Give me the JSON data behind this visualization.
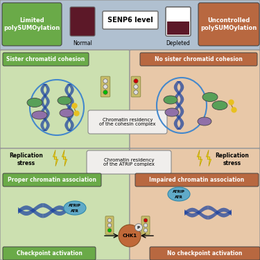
{
  "fig_w": 3.75,
  "fig_h": 3.75,
  "dpi": 100,
  "bg_top": "#b0c0d0",
  "bg_left_mid": "#cce0b0",
  "bg_right_mid": "#e8c8a8",
  "green_box": "#6aaa48",
  "brown_box": "#b86840",
  "dark_red": "#5c1828",
  "white": "#ffffff",
  "off_white": "#f0eeec",
  "blue_dna": "#1840a0",
  "green_oval": "#58a058",
  "purple_oval": "#9070a8",
  "yellow_dot": "#e8c020",
  "lightning_yellow": "#f0e030",
  "chk1_brown": "#c06838",
  "traffic_box": "#c8bc68",
  "atrip_blue": "#60aac8",
  "label_limited": "Limited\npolySUMOylation",
  "label_uncontrolled": "Uncontrolled\npolySUMOylation",
  "label_senp6": "SENP6 level",
  "label_normal": "Normal",
  "label_depleted": "Depleted",
  "label_sister": "Sister chromatid cohesion",
  "label_no_sister": "No sister chromatid cohesion",
  "label_cohesin": "Chromatin residency\nof the cohesin complex",
  "label_repl": "Replication\nstress",
  "label_atrip_complex": "Chromatin residency\nof the ATRIP complex",
  "label_proper": "Proper chromatin association",
  "label_impaired": "Impaired chromatin association",
  "label_checkpoint": "Checkpoint activation",
  "label_no_checkpoint": "No checkpoint activation",
  "label_atrip": "ATRIP",
  "label_atr": "ATR",
  "label_chk1": "CHK1",
  "label_p": "P"
}
